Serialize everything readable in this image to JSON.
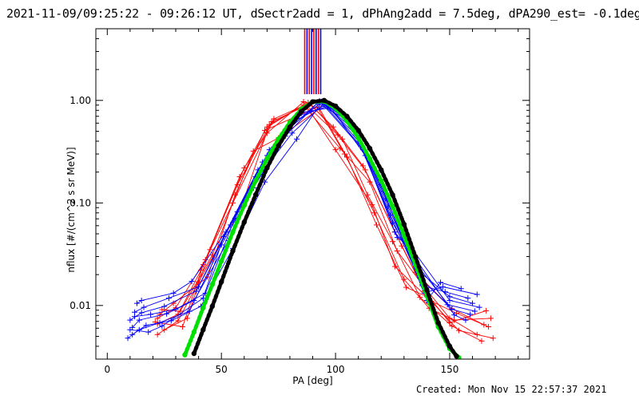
{
  "chart_data": {
    "type": "line",
    "title": "2021-11-09/09:25:22 - 09:26:12 UT, dSectr2add = 1, dPhAng2add = 7.5deg, dPA290_est= -0.1deg",
    "xlabel": "PA [deg]",
    "ylabel": "nflux [#/(cm^2 s sr MeV)]",
    "xlim": [
      -5,
      185
    ],
    "ylim": [
      0.003,
      5
    ],
    "yscale": "log",
    "x_ticks": [
      0,
      50,
      100,
      150
    ],
    "x_tick_labels": [
      "0",
      "50",
      "100",
      "150"
    ],
    "y_ticks": [
      0.01,
      0.1,
      1.0
    ],
    "y_tick_labels": [
      "0.01",
      "0.10",
      "1.00"
    ],
    "footer": "Created: Mon Nov 15 22:57:37 2021",
    "colors": {
      "series_a": "#ff0000",
      "series_b": "#0000ff",
      "gaussian_fit": "#00e000",
      "model_fit": "#000000",
      "axes": "#000000"
    },
    "series": [
      {
        "color": "red",
        "style": "line-plus",
        "x": [
          22,
          30,
          43,
          58,
          70,
          86,
          102,
          115,
          127,
          138,
          150,
          162
        ],
        "y": [
          0.0075,
          0.0095,
          0.028,
          0.18,
          0.55,
          0.9,
          0.34,
          0.16,
          0.034,
          0.016,
          0.0075,
          0.0052
        ]
      },
      {
        "color": "red",
        "style": "line-plus",
        "x": [
          22,
          31,
          41,
          57,
          72,
          89,
          103,
          114,
          125,
          137,
          151,
          164
        ],
        "y": [
          0.0066,
          0.0082,
          0.022,
          0.15,
          0.62,
          0.93,
          0.42,
          0.12,
          0.042,
          0.012,
          0.0063,
          0.0045
        ]
      },
      {
        "color": "red",
        "style": "line-plus",
        "x": [
          25,
          35,
          45,
          60,
          70,
          86,
          100,
          116,
          126,
          142,
          153,
          167
        ],
        "y": [
          0.0058,
          0.0075,
          0.035,
          0.22,
          0.48,
          0.97,
          0.33,
          0.096,
          0.024,
          0.011,
          0.0084,
          0.0062
        ]
      },
      {
        "color": "red",
        "style": "line-plus",
        "x": [
          23,
          29,
          44,
          56,
          69,
          92,
          104,
          117,
          130,
          141,
          152,
          168
        ],
        "y": [
          0.0082,
          0.0105,
          0.019,
          0.12,
          0.51,
          0.86,
          0.3,
          0.08,
          0.018,
          0.0094,
          0.0072,
          0.0075
        ]
      },
      {
        "color": "red",
        "style": "line-plus",
        "x": [
          21,
          33,
          42,
          55,
          73,
          87,
          101,
          113,
          129,
          139,
          150,
          166
        ],
        "y": [
          0.0069,
          0.0062,
          0.025,
          0.1,
          0.66,
          0.91,
          0.46,
          0.21,
          0.038,
          0.0138,
          0.0068,
          0.0089
        ]
      },
      {
        "color": "red",
        "style": "line-plus",
        "x": [
          24,
          32,
          46,
          64,
          75,
          93,
          105,
          118,
          131,
          140,
          154,
          169
        ],
        "y": [
          0.0091,
          0.0088,
          0.031,
          0.32,
          0.43,
          0.83,
          0.28,
          0.061,
          0.015,
          0.0122,
          0.0057,
          0.0048
        ]
      },
      {
        "color": "red",
        "style": "line-plus",
        "x": [
          22,
          31,
          40,
          59,
          71,
          88,
          99,
          112,
          126,
          135,
          151,
          165
        ],
        "y": [
          0.0052,
          0.0071,
          0.017,
          0.095,
          0.58,
          0.95,
          0.55,
          0.23,
          0.052,
          0.021,
          0.0093,
          0.0065
        ]
      },
      {
        "color": "blue",
        "style": "line-plus",
        "x": [
          10,
          15,
          25,
          39,
          52,
          66,
          80,
          94,
          108,
          122,
          136,
          150,
          160
        ],
        "y": [
          0.0072,
          0.0085,
          0.0098,
          0.0138,
          0.052,
          0.21,
          0.55,
          0.96,
          0.52,
          0.11,
          0.022,
          0.0122,
          0.0105
        ]
      },
      {
        "color": "blue",
        "style": "line-plus",
        "x": [
          11,
          14,
          26,
          38,
          53,
          67,
          81,
          95,
          109,
          123,
          137,
          149,
          161
        ],
        "y": [
          0.0061,
          0.0072,
          0.0083,
          0.0112,
          0.043,
          0.19,
          0.48,
          0.93,
          0.46,
          0.092,
          0.0185,
          0.0102,
          0.0088
        ]
      },
      {
        "color": "blue",
        "style": "line-plus",
        "x": [
          12,
          16,
          27,
          40,
          54,
          68,
          82,
          96,
          110,
          124,
          138,
          148,
          158
        ],
        "y": [
          0.0086,
          0.0096,
          0.0118,
          0.0152,
          0.061,
          0.25,
          0.63,
          0.91,
          0.4,
          0.076,
          0.0156,
          0.0136,
          0.0118
        ]
      },
      {
        "color": "blue",
        "style": "line-plus",
        "x": [
          11,
          17,
          28,
          41,
          55,
          69,
          83,
          94,
          111,
          125,
          135,
          151,
          159
        ],
        "y": [
          0.0052,
          0.0064,
          0.0071,
          0.0098,
          0.036,
          0.16,
          0.42,
          0.97,
          0.36,
          0.064,
          0.026,
          0.0092,
          0.0082
        ]
      },
      {
        "color": "blue",
        "style": "line-plus",
        "x": [
          13,
          15,
          29,
          37,
          56,
          70,
          84,
          97,
          107,
          121,
          139,
          147,
          162
        ],
        "y": [
          0.0105,
          0.0112,
          0.0132,
          0.0172,
          0.071,
          0.29,
          0.71,
          0.88,
          0.58,
          0.13,
          0.0132,
          0.0152,
          0.0128
        ]
      },
      {
        "color": "blue",
        "style": "line-plus",
        "x": [
          10,
          18,
          24,
          42,
          51,
          65,
          79,
          93,
          112,
          126,
          134,
          152,
          157
        ],
        "y": [
          0.0058,
          0.0055,
          0.0063,
          0.0118,
          0.047,
          0.18,
          0.51,
          0.99,
          0.33,
          0.052,
          0.031,
          0.0081,
          0.0072
        ]
      },
      {
        "color": "blue",
        "style": "line-plus",
        "x": [
          12,
          19,
          30,
          43,
          57,
          71,
          85,
          98,
          113,
          127,
          133,
          150,
          163
        ],
        "y": [
          0.0078,
          0.0082,
          0.0092,
          0.0132,
          0.082,
          0.33,
          0.76,
          0.85,
          0.29,
          0.046,
          0.037,
          0.0112,
          0.0096
        ]
      },
      {
        "color": "blue",
        "style": "line-plus",
        "x": [
          9,
          14,
          23,
          36,
          50,
          64,
          78,
          92,
          106,
          120,
          140,
          146,
          155
        ],
        "y": [
          0.0048,
          0.0058,
          0.0068,
          0.0088,
          0.039,
          0.14,
          0.45,
          0.94,
          0.63,
          0.15,
          0.0112,
          0.0168,
          0.0146
        ]
      },
      {
        "color": "green",
        "style": "thick-dots",
        "x": [
          34,
          38,
          42,
          46,
          50,
          55,
          60,
          65,
          70,
          75,
          80,
          85,
          90,
          95,
          100,
          105,
          110,
          115,
          120,
          125,
          130,
          135,
          140,
          145,
          150,
          154
        ],
        "y": [
          0.0033,
          0.0055,
          0.0095,
          0.016,
          0.027,
          0.052,
          0.095,
          0.165,
          0.27,
          0.42,
          0.61,
          0.82,
          0.97,
          0.98,
          0.84,
          0.63,
          0.43,
          0.27,
          0.165,
          0.092,
          0.048,
          0.025,
          0.0125,
          0.0062,
          0.0038,
          0.0031
        ]
      },
      {
        "color": "black",
        "style": "thick-dots",
        "x": [
          38,
          42,
          46,
          50,
          55,
          60,
          65,
          70,
          75,
          80,
          85,
          90,
          95,
          100,
          105,
          110,
          115,
          120,
          125,
          130,
          135,
          140,
          145,
          150,
          153
        ],
        "y": [
          0.0034,
          0.0058,
          0.0098,
          0.017,
          0.034,
          0.065,
          0.12,
          0.22,
          0.36,
          0.55,
          0.78,
          0.97,
          1.0,
          0.88,
          0.7,
          0.51,
          0.34,
          0.21,
          0.12,
          0.062,
          0.03,
          0.0142,
          0.0068,
          0.004,
          0.0032
        ]
      }
    ],
    "vertical_bars": {
      "x": [
        86.5,
        87.5,
        88.5,
        89.5,
        90.5,
        91.5,
        92.5,
        93.5
      ],
      "colors": [
        "#ff0000",
        "#0000ff",
        "#ff0000",
        "#0000ff",
        "#ff0000",
        "#0000ff",
        "#ff0000",
        "#0000ff"
      ],
      "y_from": 1.15,
      "y_to": 5
    }
  }
}
